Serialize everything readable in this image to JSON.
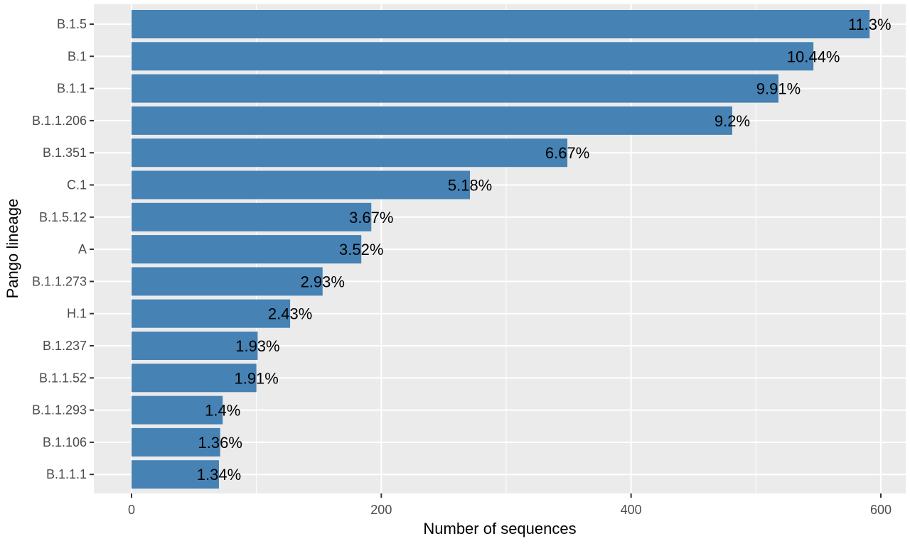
{
  "colors": {
    "panel": "#ebebeb",
    "gridline": "#ffffff",
    "bar": "#4682b4",
    "axis_text": "#4d4d4d",
    "tick": "#333333"
  },
  "chart_data": {
    "type": "bar",
    "orientation": "horizontal",
    "xlabel": "Number of sequences",
    "ylabel": "Pango lineage",
    "xlim": [
      0,
      620
    ],
    "x_ticks": [
      0,
      200,
      400,
      600
    ],
    "grid": true,
    "categories": [
      "B.1.5",
      "B.1",
      "B.1.1",
      "B.1.1.206",
      "B.1.351",
      "C.1",
      "B.1.5.12",
      "A",
      "B.1.1.273",
      "H.1",
      "B.1.237",
      "B.1.1.52",
      "B.1.1.293",
      "B.1.106",
      "B.1.1.1"
    ],
    "values": [
      591,
      546,
      518,
      481,
      349,
      271,
      192,
      184,
      153,
      127,
      101,
      100,
      73,
      71,
      70
    ],
    "labels": [
      "11.3%",
      "10.44%",
      "9.91%",
      "9.2%",
      "6.67%",
      "5.18%",
      "3.67%",
      "3.52%",
      "2.93%",
      "2.43%",
      "1.93%",
      "1.91%",
      "1.4%",
      "1.36%",
      "1.34%"
    ]
  }
}
